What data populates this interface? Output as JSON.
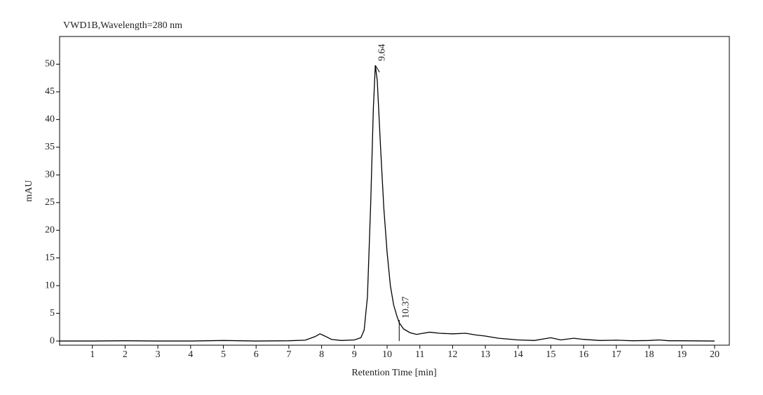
{
  "chart_data": {
    "type": "line",
    "title": "VWD1B,Wavelength=280 nm",
    "xlabel": "Retention Time [min]",
    "ylabel": "mAU",
    "color": "#000000",
    "x": [
      0,
      1,
      2,
      3,
      4,
      5,
      6,
      7,
      7.5,
      7.8,
      7.95,
      8.1,
      8.3,
      8.6,
      9,
      9.2,
      9.3,
      9.4,
      9.5,
      9.58,
      9.64,
      9.7,
      9.8,
      9.9,
      10,
      10.1,
      10.2,
      10.3,
      10.37,
      10.5,
      10.7,
      10.9,
      11.1,
      11.3,
      11.6,
      12,
      12.4,
      12.7,
      13,
      13.4,
      14,
      14.5,
      14.8,
      15,
      15.3,
      15.7,
      16,
      16.5,
      17,
      17.5,
      18,
      18.3,
      18.6,
      19,
      20
    ],
    "values": [
      0,
      0,
      0.05,
      0,
      0,
      0.1,
      0,
      0.05,
      0.15,
      0.8,
      1.3,
      0.9,
      0.3,
      0.1,
      0.2,
      0.6,
      2,
      8,
      25,
      42,
      49.8,
      47,
      35,
      24,
      16,
      10,
      6.5,
      4.5,
      3.3,
      2.2,
      1.5,
      1.2,
      1.4,
      1.6,
      1.4,
      1.3,
      1.4,
      1.1,
      0.9,
      0.5,
      0.2,
      0.1,
      0.4,
      0.6,
      0.2,
      0.5,
      0.3,
      0.1,
      0.15,
      0.05,
      0.1,
      0.2,
      0.05,
      0.05,
      0
    ],
    "peak_labels": [
      9.64,
      10.37
    ],
    "xlim": [
      0,
      20.45
    ],
    "ylim": [
      -0.75,
      55
    ],
    "xticks": [
      1,
      2,
      3,
      4,
      5,
      6,
      7,
      8,
      9,
      10,
      11,
      12,
      13,
      14,
      15,
      16,
      17,
      18,
      19,
      20
    ],
    "yticks": [
      0,
      5,
      10,
      15,
      20,
      25,
      30,
      35,
      40,
      45,
      50
    ]
  }
}
